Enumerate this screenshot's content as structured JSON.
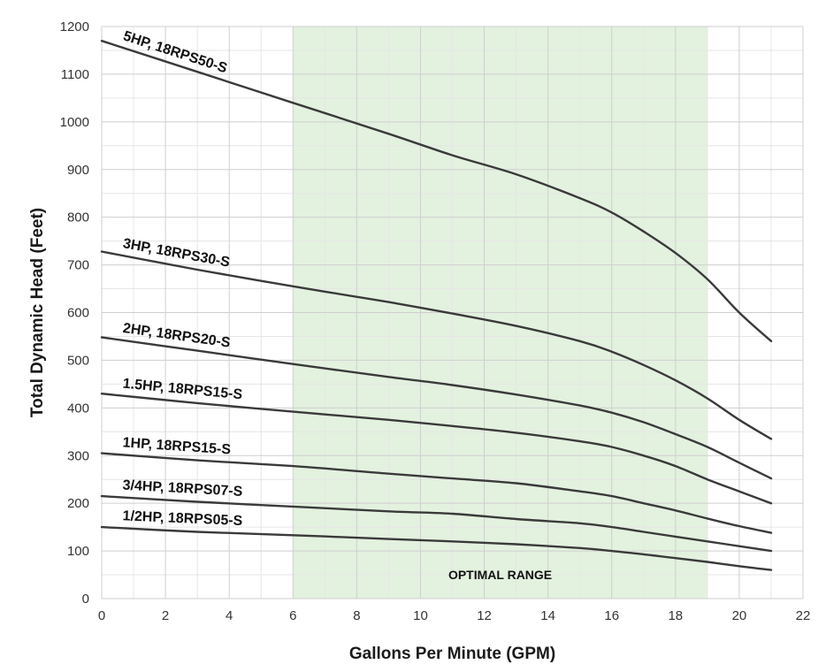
{
  "chart_data": {
    "type": "line",
    "title": "",
    "xlabel": "Gallons Per Minute (GPM)",
    "ylabel": "Total Dynamic Head (Feet)",
    "xlim": [
      0,
      22
    ],
    "ylim": [
      0,
      1200
    ],
    "x_ticks": [
      0,
      2,
      4,
      6,
      8,
      10,
      12,
      14,
      16,
      18,
      20,
      22
    ],
    "y_ticks": [
      0,
      100,
      200,
      300,
      400,
      500,
      600,
      700,
      800,
      900,
      1000,
      1100,
      1200
    ],
    "grid": true,
    "colors": {
      "curve": "#3a3a3a",
      "optimal_band": "#e3f1df",
      "grid": "#cfcfcf"
    },
    "optimal_range": {
      "x": [
        6,
        19
      ],
      "label": "OPTIMAL RANGE"
    },
    "series": [
      {
        "name": "5HP,  18RPS50-S",
        "x": [
          0,
          3,
          6,
          9,
          11,
          13,
          15,
          16,
          17,
          18,
          19,
          20,
          21
        ],
        "values": [
          1170,
          1105,
          1040,
          975,
          930,
          890,
          840,
          810,
          770,
          725,
          670,
          600,
          540
        ]
      },
      {
        "name": "3HP,  18RPS30-S",
        "x": [
          0,
          3,
          6,
          9,
          11,
          13,
          15,
          16,
          17,
          18,
          19,
          20,
          21
        ],
        "values": [
          728,
          690,
          655,
          622,
          598,
          572,
          540,
          518,
          490,
          458,
          420,
          375,
          335
        ]
      },
      {
        "name": "2HP, 18RPS20-S",
        "x": [
          0,
          3,
          6,
          9,
          11,
          13,
          15,
          16,
          17,
          18,
          19,
          20,
          21
        ],
        "values": [
          548,
          520,
          492,
          465,
          448,
          428,
          405,
          390,
          370,
          345,
          318,
          285,
          252
        ]
      },
      {
        "name": "1.5HP, 18RPS15-S",
        "x": [
          0,
          3,
          6,
          9,
          11,
          13,
          15,
          16,
          17,
          18,
          19,
          20,
          21
        ],
        "values": [
          430,
          410,
          392,
          375,
          362,
          348,
          330,
          318,
          300,
          278,
          250,
          225,
          200
        ]
      },
      {
        "name": "1HP, 18RPS15-S",
        "x": [
          0,
          3,
          6,
          9,
          11,
          13,
          15,
          16,
          17,
          18,
          19,
          20,
          21
        ],
        "values": [
          305,
          290,
          278,
          262,
          252,
          242,
          225,
          215,
          200,
          185,
          168,
          152,
          138
        ]
      },
      {
        "name": "3/4HP, 18RPS07-S",
        "x": [
          0,
          3,
          6,
          9,
          11,
          13,
          15,
          16,
          17,
          18,
          19,
          20,
          21
        ],
        "values": [
          215,
          203,
          193,
          183,
          178,
          167,
          158,
          150,
          140,
          130,
          120,
          110,
          100
        ]
      },
      {
        "name": "1/2HP, 18RPS05-S",
        "x": [
          0,
          3,
          6,
          9,
          11,
          13,
          15,
          16,
          17,
          18,
          19,
          20,
          21
        ],
        "values": [
          150,
          140,
          133,
          125,
          120,
          114,
          106,
          100,
          93,
          85,
          77,
          68,
          60
        ]
      }
    ]
  }
}
